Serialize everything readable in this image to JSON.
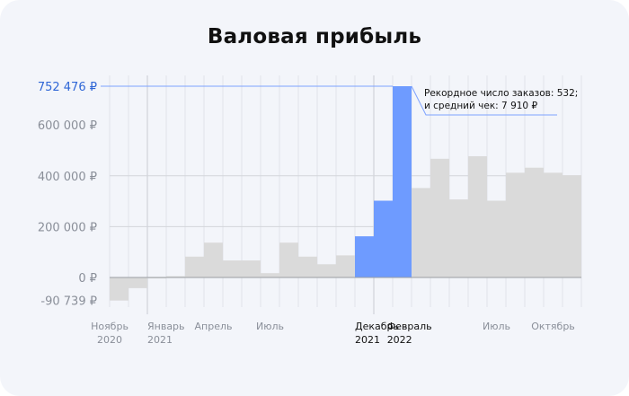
{
  "title": "Валовая прибыль",
  "colors": {
    "bar_gray": "#dadada",
    "bar_blue": "#6e9bff",
    "negative_bar": "#dadada",
    "highlight_text": "#2f66d6",
    "guide_line": "#7ea2ff",
    "card_bg": "#f3f5fa"
  },
  "chart_data": {
    "type": "bar",
    "ylim": [
      -90739,
      752476
    ],
    "ytick_labels": [
      {
        "value": 752476,
        "label": "752 476 ₽",
        "highlight": true
      },
      {
        "value": 600000,
        "label": "600 000 ₽"
      },
      {
        "value": 400000,
        "label": "400 000 ₽"
      },
      {
        "value": 200000,
        "label": "200 000 ₽"
      },
      {
        "value": 0,
        "label": "0 ₽"
      },
      {
        "value": -90739,
        "label": "-90 739 ₽"
      }
    ],
    "grid": "horizontal at 200 000 and 400 000; vertical at each bar boundary",
    "bars": [
      {
        "period": "2020-11",
        "value": -90739,
        "color": "gray"
      },
      {
        "period": "2020-12",
        "value": -42000,
        "color": "gray"
      },
      {
        "period": "2021-01",
        "value": 0,
        "color": "gray"
      },
      {
        "period": "2021-02",
        "value": 5000,
        "color": "gray"
      },
      {
        "period": "2021-03",
        "value": 82000,
        "color": "gray"
      },
      {
        "period": "2021-04",
        "value": 137000,
        "color": "gray"
      },
      {
        "period": "2021-05",
        "value": 67000,
        "color": "gray"
      },
      {
        "period": "2021-06",
        "value": 67000,
        "color": "gray"
      },
      {
        "period": "2021-07",
        "value": 17000,
        "color": "gray"
      },
      {
        "period": "2021-08",
        "value": 137000,
        "color": "gray"
      },
      {
        "period": "2021-09",
        "value": 82000,
        "color": "gray"
      },
      {
        "period": "2021-10",
        "value": 52000,
        "color": "gray"
      },
      {
        "period": "2021-11",
        "value": 87000,
        "color": "gray"
      },
      {
        "period": "2021-12",
        "value": 162000,
        "color": "blue"
      },
      {
        "period": "2022-01",
        "value": 302000,
        "color": "blue"
      },
      {
        "period": "2022-02",
        "value": 752476,
        "color": "blue"
      },
      {
        "period": "2022-03",
        "value": 352000,
        "color": "gray"
      },
      {
        "period": "2022-04",
        "value": 467000,
        "color": "gray"
      },
      {
        "period": "2022-05",
        "value": 307000,
        "color": "gray"
      },
      {
        "period": "2022-06",
        "value": 477000,
        "color": "gray"
      },
      {
        "period": "2022-07",
        "value": 302000,
        "color": "gray"
      },
      {
        "period": "2022-08",
        "value": 412000,
        "color": "gray"
      },
      {
        "period": "2022-09",
        "value": 432000,
        "color": "gray"
      },
      {
        "period": "2022-10",
        "value": 412000,
        "color": "gray"
      },
      {
        "period": "2022-11",
        "value": 402000,
        "color": "gray"
      }
    ],
    "x_labels": [
      {
        "line1": "Ноябрь",
        "line2": "2020",
        "period": "2020-11",
        "dark": false
      },
      {
        "line1": "Январь",
        "line2": "2021",
        "period": "2021-01",
        "dark": false
      },
      {
        "line1": "Апрель",
        "line2": "",
        "period": "2021-04",
        "dark": false
      },
      {
        "line1": "Июль",
        "line2": "",
        "period": "2021-07",
        "dark": false
      },
      {
        "line1": "Декабрь –",
        "line2": "2021",
        "period": "2021-12",
        "dark": true
      },
      {
        "line1": "Февраль",
        "line2": "2022",
        "period": "2022-02",
        "dark": true
      },
      {
        "line1": "Июль",
        "line2": "",
        "period": "2022-07",
        "dark": false
      },
      {
        "line1": "Октябрь",
        "line2": "",
        "period": "2022-10",
        "dark": false
      }
    ],
    "annotation": {
      "line1": "Рекордное число заказов: 532;",
      "line2": "и средний чек: 7 910 ₽",
      "period": "2022-02"
    }
  }
}
